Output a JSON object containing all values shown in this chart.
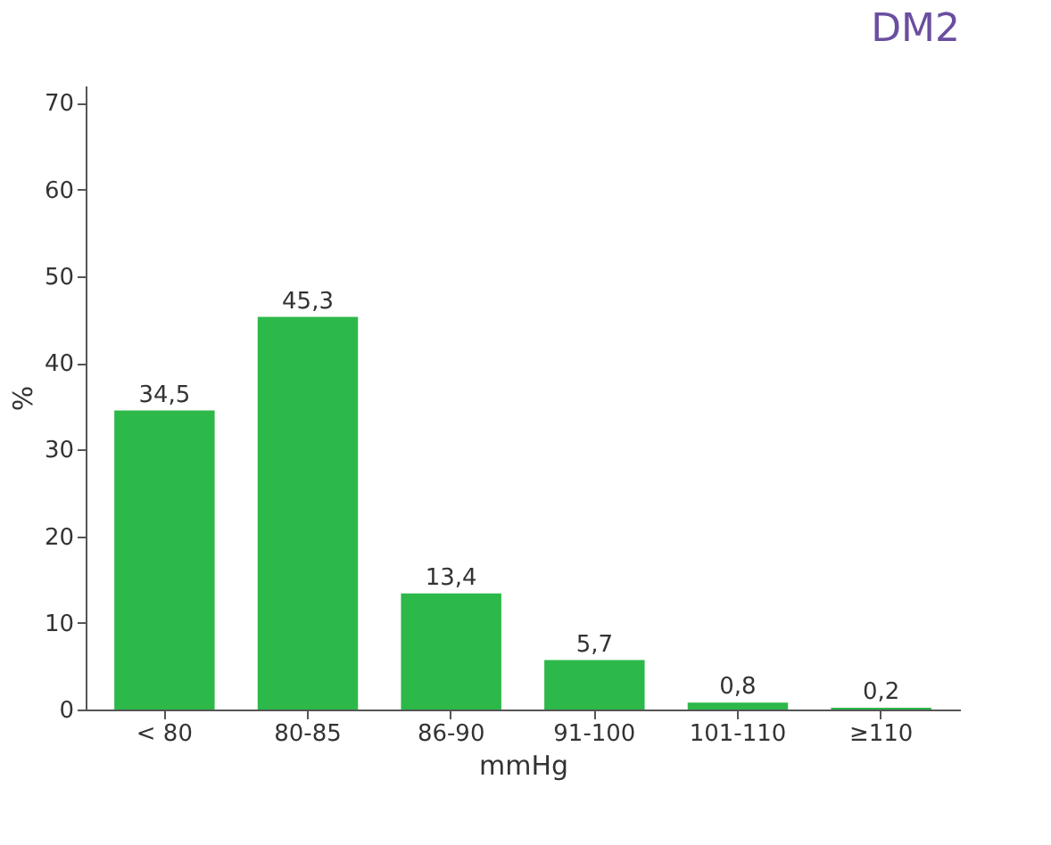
{
  "chart_data": {
    "type": "bar",
    "title": "DM2",
    "xlabel": "mmHg",
    "ylabel": "%",
    "categories": [
      "< 80",
      "80-85",
      "86-90",
      "91-100",
      "101-110",
      "≥110"
    ],
    "values": [
      34.5,
      45.3,
      13.4,
      5.7,
      0.8,
      0.2
    ],
    "value_labels": [
      "34,5",
      "45,3",
      "13,4",
      "5,7",
      "0,8",
      "0,2"
    ],
    "color": "#2db84a",
    "ylim": [
      0,
      72
    ],
    "yticks": [
      0,
      10,
      20,
      30,
      40,
      50,
      60,
      70
    ],
    "grid": false
  }
}
